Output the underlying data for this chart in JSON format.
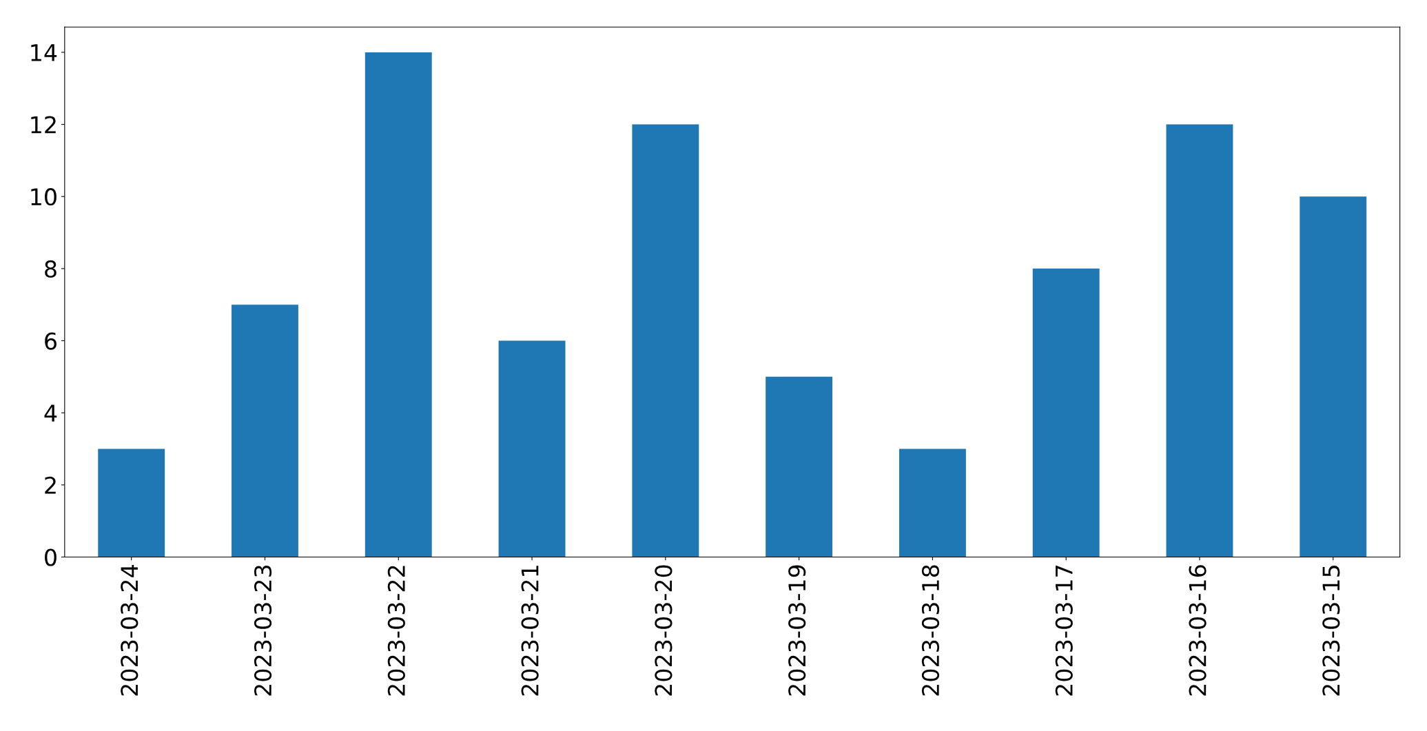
{
  "chart_data": {
    "type": "bar",
    "categories": [
      "2023-03-24",
      "2023-03-23",
      "2023-03-22",
      "2023-03-21",
      "2023-03-20",
      "2023-03-19",
      "2023-03-18",
      "2023-03-17",
      "2023-03-16",
      "2023-03-15"
    ],
    "values": [
      3,
      7,
      14,
      6,
      12,
      5,
      3,
      8,
      12,
      10
    ],
    "color": "#1f77b4",
    "ylim": [
      0,
      14.7
    ],
    "yticks": [
      0,
      2,
      4,
      6,
      8,
      10,
      12,
      14
    ],
    "grid": false,
    "legend": false
  }
}
